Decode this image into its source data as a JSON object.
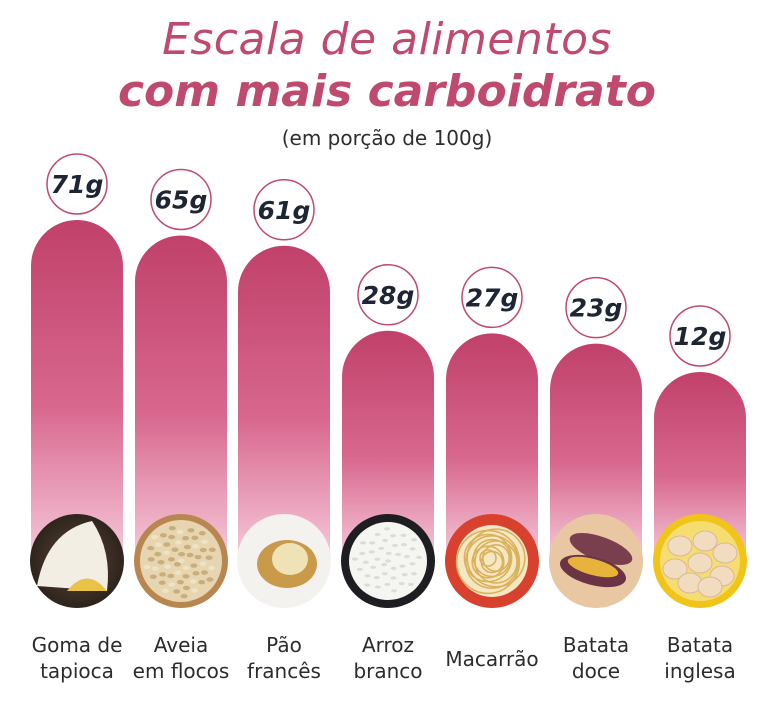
{
  "header": {
    "title_line1": "Escala de alimentos",
    "title_line2": "com mais carboidrato",
    "subtitle": "(em porção de 100g)"
  },
  "colors": {
    "title": "#c04a6e",
    "bar_top": "#c0416a",
    "bar_bottom": "#f4bfd3",
    "badge_border": "#c04a6e",
    "value_text": "#1e2533"
  },
  "chart_data": {
    "type": "bar",
    "title": "Escala de alimentos com mais carboidrato",
    "subtitle": "(em porção de 100g)",
    "categories": [
      "Goma de\ntapioca",
      "Aveia\nem flocos",
      "Pão\nfrancês",
      "Arroz\nbranco",
      "Macarrão",
      "Batata\ndoce",
      "Batata\ninglesa"
    ],
    "values": [
      71,
      65,
      61,
      28,
      27,
      23,
      12
    ],
    "value_labels": [
      "71g",
      "65g",
      "61g",
      "28g",
      "27g",
      "23g",
      "12g"
    ],
    "food_icons": [
      "tapioca-plate-icon",
      "oats-bowl-icon",
      "bread-roll-icon",
      "rice-bowl-icon",
      "pasta-plate-icon",
      "sweet-potato-icon",
      "potatoes-bowl-icon"
    ],
    "xlabel": "",
    "ylabel": "",
    "grid": false,
    "legend": "none"
  }
}
